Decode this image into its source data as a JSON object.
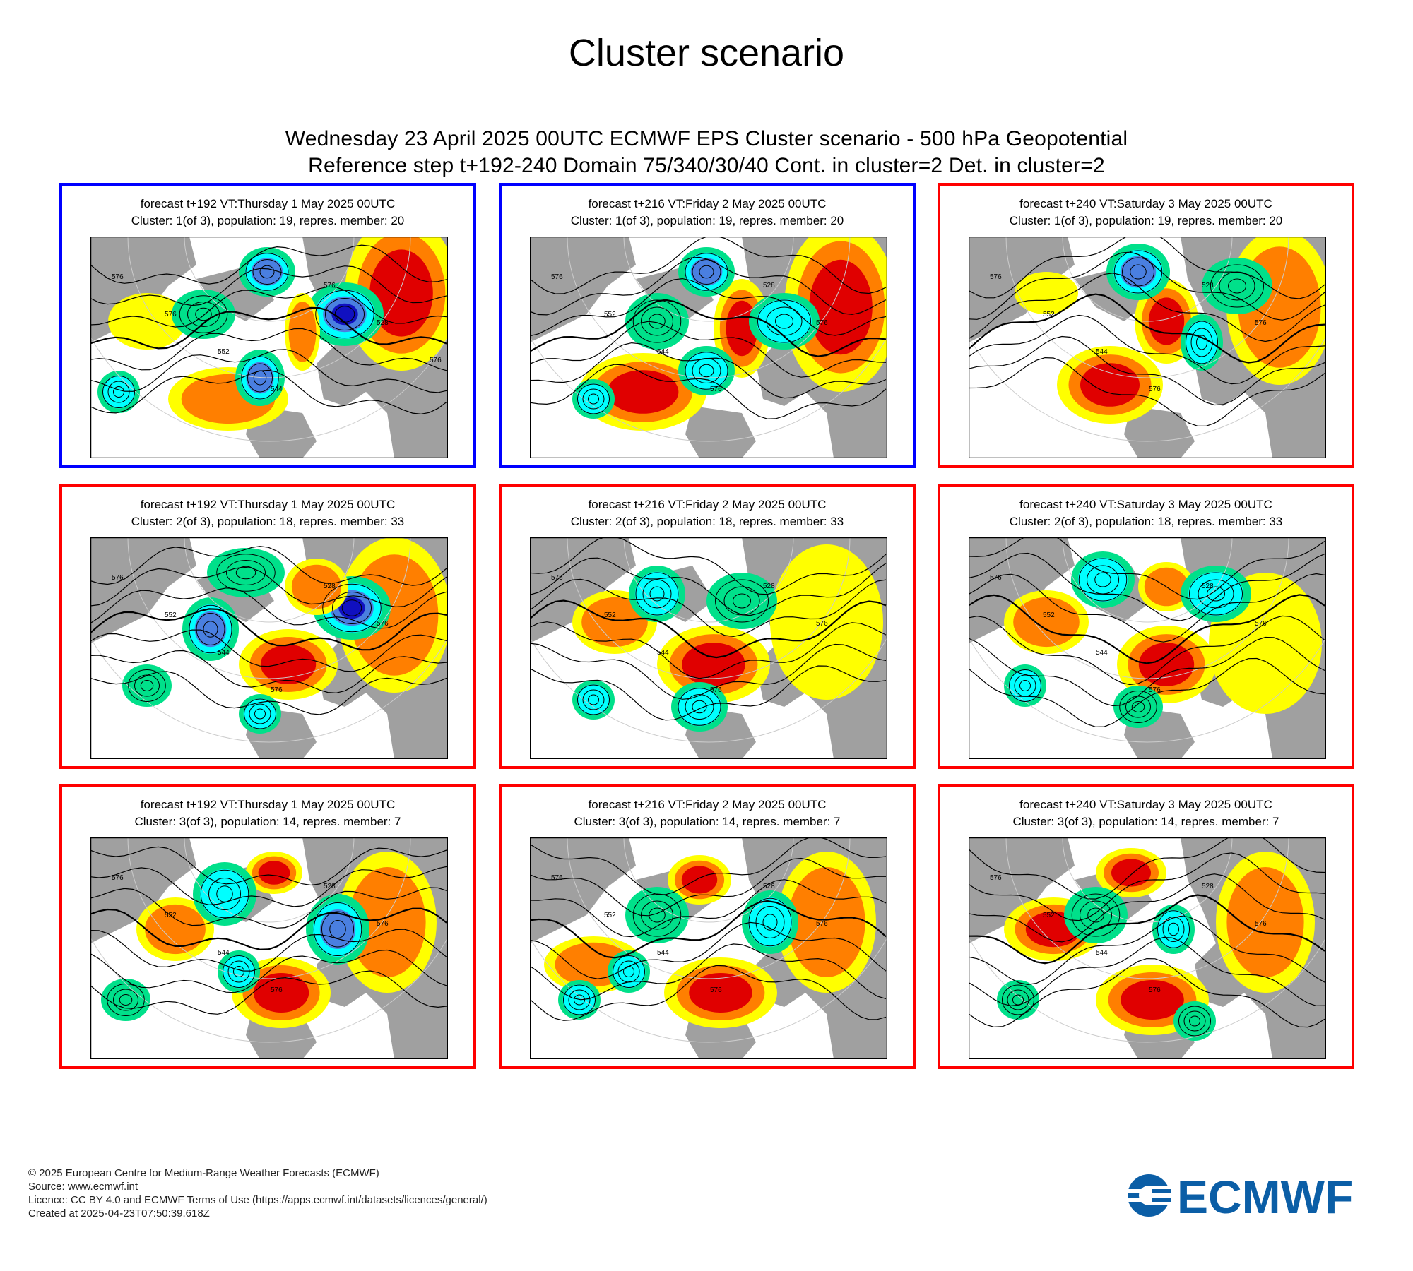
{
  "page": {
    "title": "Cluster scenario",
    "subtitle_line1": "Wednesday 23 April 2025 00UTC ECMWF EPS Cluster scenario - 500 hPa Geopotential",
    "subtitle_line2": "Reference step t+192-240 Domain 75/340/30/40 Cont. in cluster=2 Det. in cluster=2"
  },
  "colors": {
    "highlight_frame": "#0000ff",
    "default_frame": "#ff0000",
    "land": "#a0a0a0",
    "anomaly_positive": [
      "#ffff00",
      "#ff7f00",
      "#e00000",
      "#b0306f"
    ],
    "anomaly_negative": [
      "#00e08a",
      "#00ffff",
      "#4a7fe0",
      "#1010c0"
    ],
    "logo_blue": "#0b5ea6"
  },
  "panels": [
    {
      "forecast": "forecast t+192 VT:Thursday 1 May 2025 00UTC",
      "cluster": "Cluster: 1(of 3), population: 19, repres. member: 20",
      "frame": "blue",
      "contour_labels": [
        "576",
        "576",
        "552",
        "544",
        "576",
        "528",
        "576"
      ]
    },
    {
      "forecast": "forecast t+216 VT:Friday 2 May 2025 00UTC",
      "cluster": "Cluster: 1(of 3), population: 19, repres. member: 20",
      "frame": "blue",
      "contour_labels": [
        "576",
        "552",
        "544",
        "576",
        "528",
        "576"
      ]
    },
    {
      "forecast": "forecast t+240 VT:Saturday 3 May 2025 00UTC",
      "cluster": "Cluster: 1(of 3), population: 19, repres. member: 20",
      "frame": "red",
      "contour_labels": [
        "576",
        "552",
        "544",
        "576",
        "528",
        "576"
      ]
    },
    {
      "forecast": "forecast t+192 VT:Thursday 1 May 2025 00UTC",
      "cluster": "Cluster: 2(of 3), population: 18, repres. member: 33",
      "frame": "red",
      "contour_labels": [
        "576",
        "552",
        "544",
        "576",
        "528",
        "576"
      ]
    },
    {
      "forecast": "forecast t+216 VT:Friday 2 May 2025 00UTC",
      "cluster": "Cluster: 2(of 3), population: 18, repres. member: 33",
      "frame": "red",
      "contour_labels": [
        "576",
        "552",
        "544",
        "576",
        "528",
        "576"
      ]
    },
    {
      "forecast": "forecast t+240 VT:Saturday 3 May 2025 00UTC",
      "cluster": "Cluster: 2(of 3), population: 18, repres. member: 33",
      "frame": "red",
      "contour_labels": [
        "576",
        "552",
        "544",
        "576",
        "528",
        "576"
      ]
    },
    {
      "forecast": "forecast t+192 VT:Thursday 1 May 2025 00UTC",
      "cluster": "Cluster: 3(of 3), population: 14, repres. member: 7",
      "frame": "red",
      "contour_labels": [
        "576",
        "552",
        "544",
        "576",
        "528",
        "576"
      ]
    },
    {
      "forecast": "forecast t+216 VT:Friday 2 May 2025 00UTC",
      "cluster": "Cluster: 3(of 3), population: 14, repres. member: 7",
      "frame": "red",
      "contour_labels": [
        "576",
        "552",
        "544",
        "576",
        "528",
        "576"
      ]
    },
    {
      "forecast": "forecast t+240 VT:Saturday 3 May 2025 00UTC",
      "cluster": "Cluster: 3(of 3), population: 14, repres. member: 7",
      "frame": "red",
      "contour_labels": [
        "576",
        "552",
        "544",
        "576",
        "528",
        "576"
      ]
    }
  ],
  "footer": {
    "line1": "© 2025 European Centre for Medium-Range Weather Forecasts (ECMWF)",
    "line2": "Source: www.ecmwf.int",
    "line3": "Licence: CC BY 4.0 and ECMWF Terms of Use (https://apps.ecmwf.int/datasets/licences/general/)",
    "line4": "Created at 2025-04-23T07:50:39.618Z"
  },
  "logo": {
    "text": "ECMWF"
  }
}
